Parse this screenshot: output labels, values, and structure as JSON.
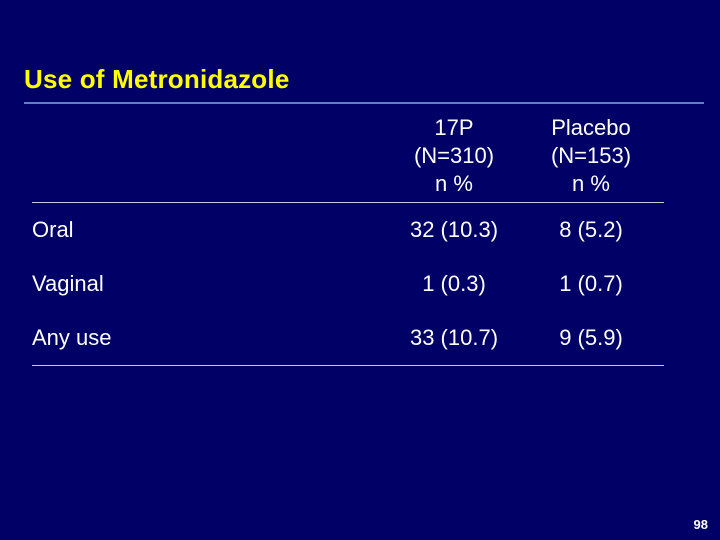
{
  "title": "Use of Metronidazole",
  "columns": [
    {
      "name": "17P",
      "n": "(N=310)",
      "stat": "n %"
    },
    {
      "name": "Placebo",
      "n": "(N=153)",
      "stat": "n %"
    }
  ],
  "rows": [
    {
      "label": "Oral",
      "v1": "32 (10.3)",
      "v2": "8 (5.2)"
    },
    {
      "label": "Vaginal",
      "v1": "1 (0.3)",
      "v2": "1 (0.7)"
    },
    {
      "label": "Any use",
      "v1": "33 (10.7)",
      "v2": "9 (5.9)"
    }
  ],
  "page_number": "98",
  "colors": {
    "background": "#000066",
    "title": "#ffff00",
    "text": "#ffffff",
    "rule": "#5f7fc0"
  }
}
